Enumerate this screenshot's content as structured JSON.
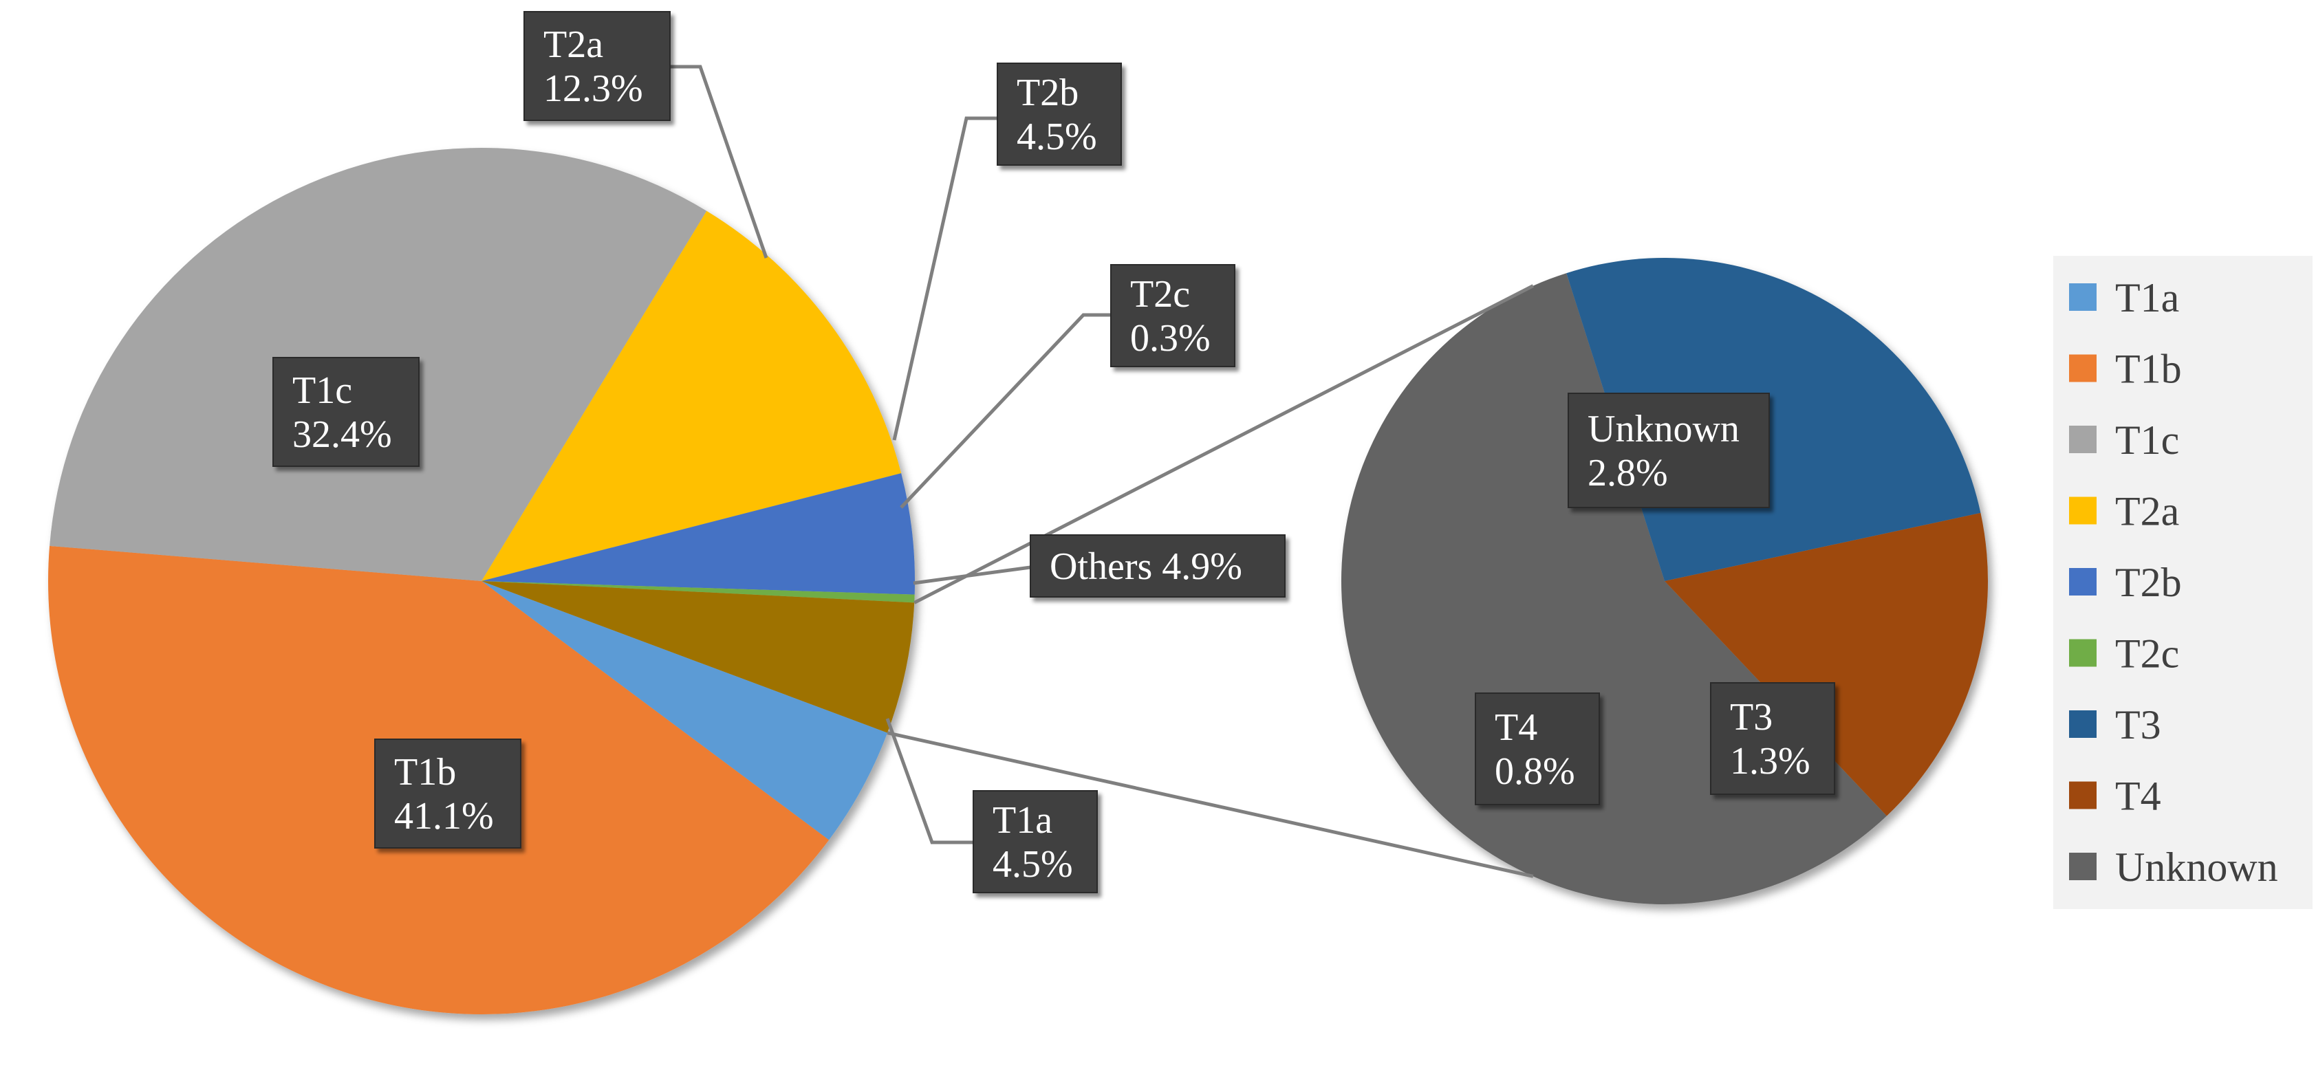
{
  "chart_data": {
    "type": "pie",
    "subtype": "pie-of-pie",
    "main_pie": {
      "slices": [
        {
          "name": "T1a",
          "value": 4.5,
          "color": "#5B9BD5",
          "label_lines": [
            "T1a",
            "4.5%"
          ]
        },
        {
          "name": "T1b",
          "value": 41.1,
          "color": "#ED7D31",
          "label_lines": [
            "T1b",
            "41.1%"
          ]
        },
        {
          "name": "T1c",
          "value": 32.4,
          "color": "#A5A5A5",
          "label_lines": [
            "T1c",
            "32.4%"
          ]
        },
        {
          "name": "T2a",
          "value": 12.3,
          "color": "#FFC000",
          "label_lines": [
            "T2a",
            "12.3%"
          ]
        },
        {
          "name": "T2b",
          "value": 4.5,
          "color": "#4472C4",
          "label_lines": [
            "T2b",
            "4.5%"
          ]
        },
        {
          "name": "T2c",
          "value": 0.3,
          "color": "#70AD47",
          "label_lines": [
            "T2c",
            "0.3%"
          ]
        },
        {
          "name": "Others",
          "value": 4.9,
          "color": "#9E7200",
          "label_lines": [
            "Others 4.9%"
          ]
        }
      ]
    },
    "secondary_pie": {
      "total": 4.9,
      "slices": [
        {
          "name": "Unknown",
          "value": 2.8,
          "color": "#636363",
          "label_lines": [
            "Unknown",
            "2.8%"
          ]
        },
        {
          "name": "T3",
          "value": 1.3,
          "color": "#255E91",
          "label_lines": [
            "T3",
            "1.3%"
          ]
        },
        {
          "name": "T4",
          "value": 0.8,
          "color": "#9E480E",
          "label_lines": [
            "T4",
            "0.8%"
          ]
        }
      ]
    },
    "legend": {
      "placement": "right",
      "entries": [
        {
          "label": "T1a",
          "color": "#5B9BD5"
        },
        {
          "label": "T1b",
          "color": "#ED7D31"
        },
        {
          "label": "T1c",
          "color": "#A5A5A5"
        },
        {
          "label": "T2a",
          "color": "#FFC000"
        },
        {
          "label": "T2b",
          "color": "#4472C4"
        },
        {
          "label": "T2c",
          "color": "#70AD47"
        },
        {
          "label": "T3",
          "color": "#255E91"
        },
        {
          "label": "T4",
          "color": "#9E480E"
        },
        {
          "label": "Unknown",
          "color": "#636363"
        }
      ]
    },
    "title": "",
    "data_labels": "boxed, dark background, white text"
  }
}
